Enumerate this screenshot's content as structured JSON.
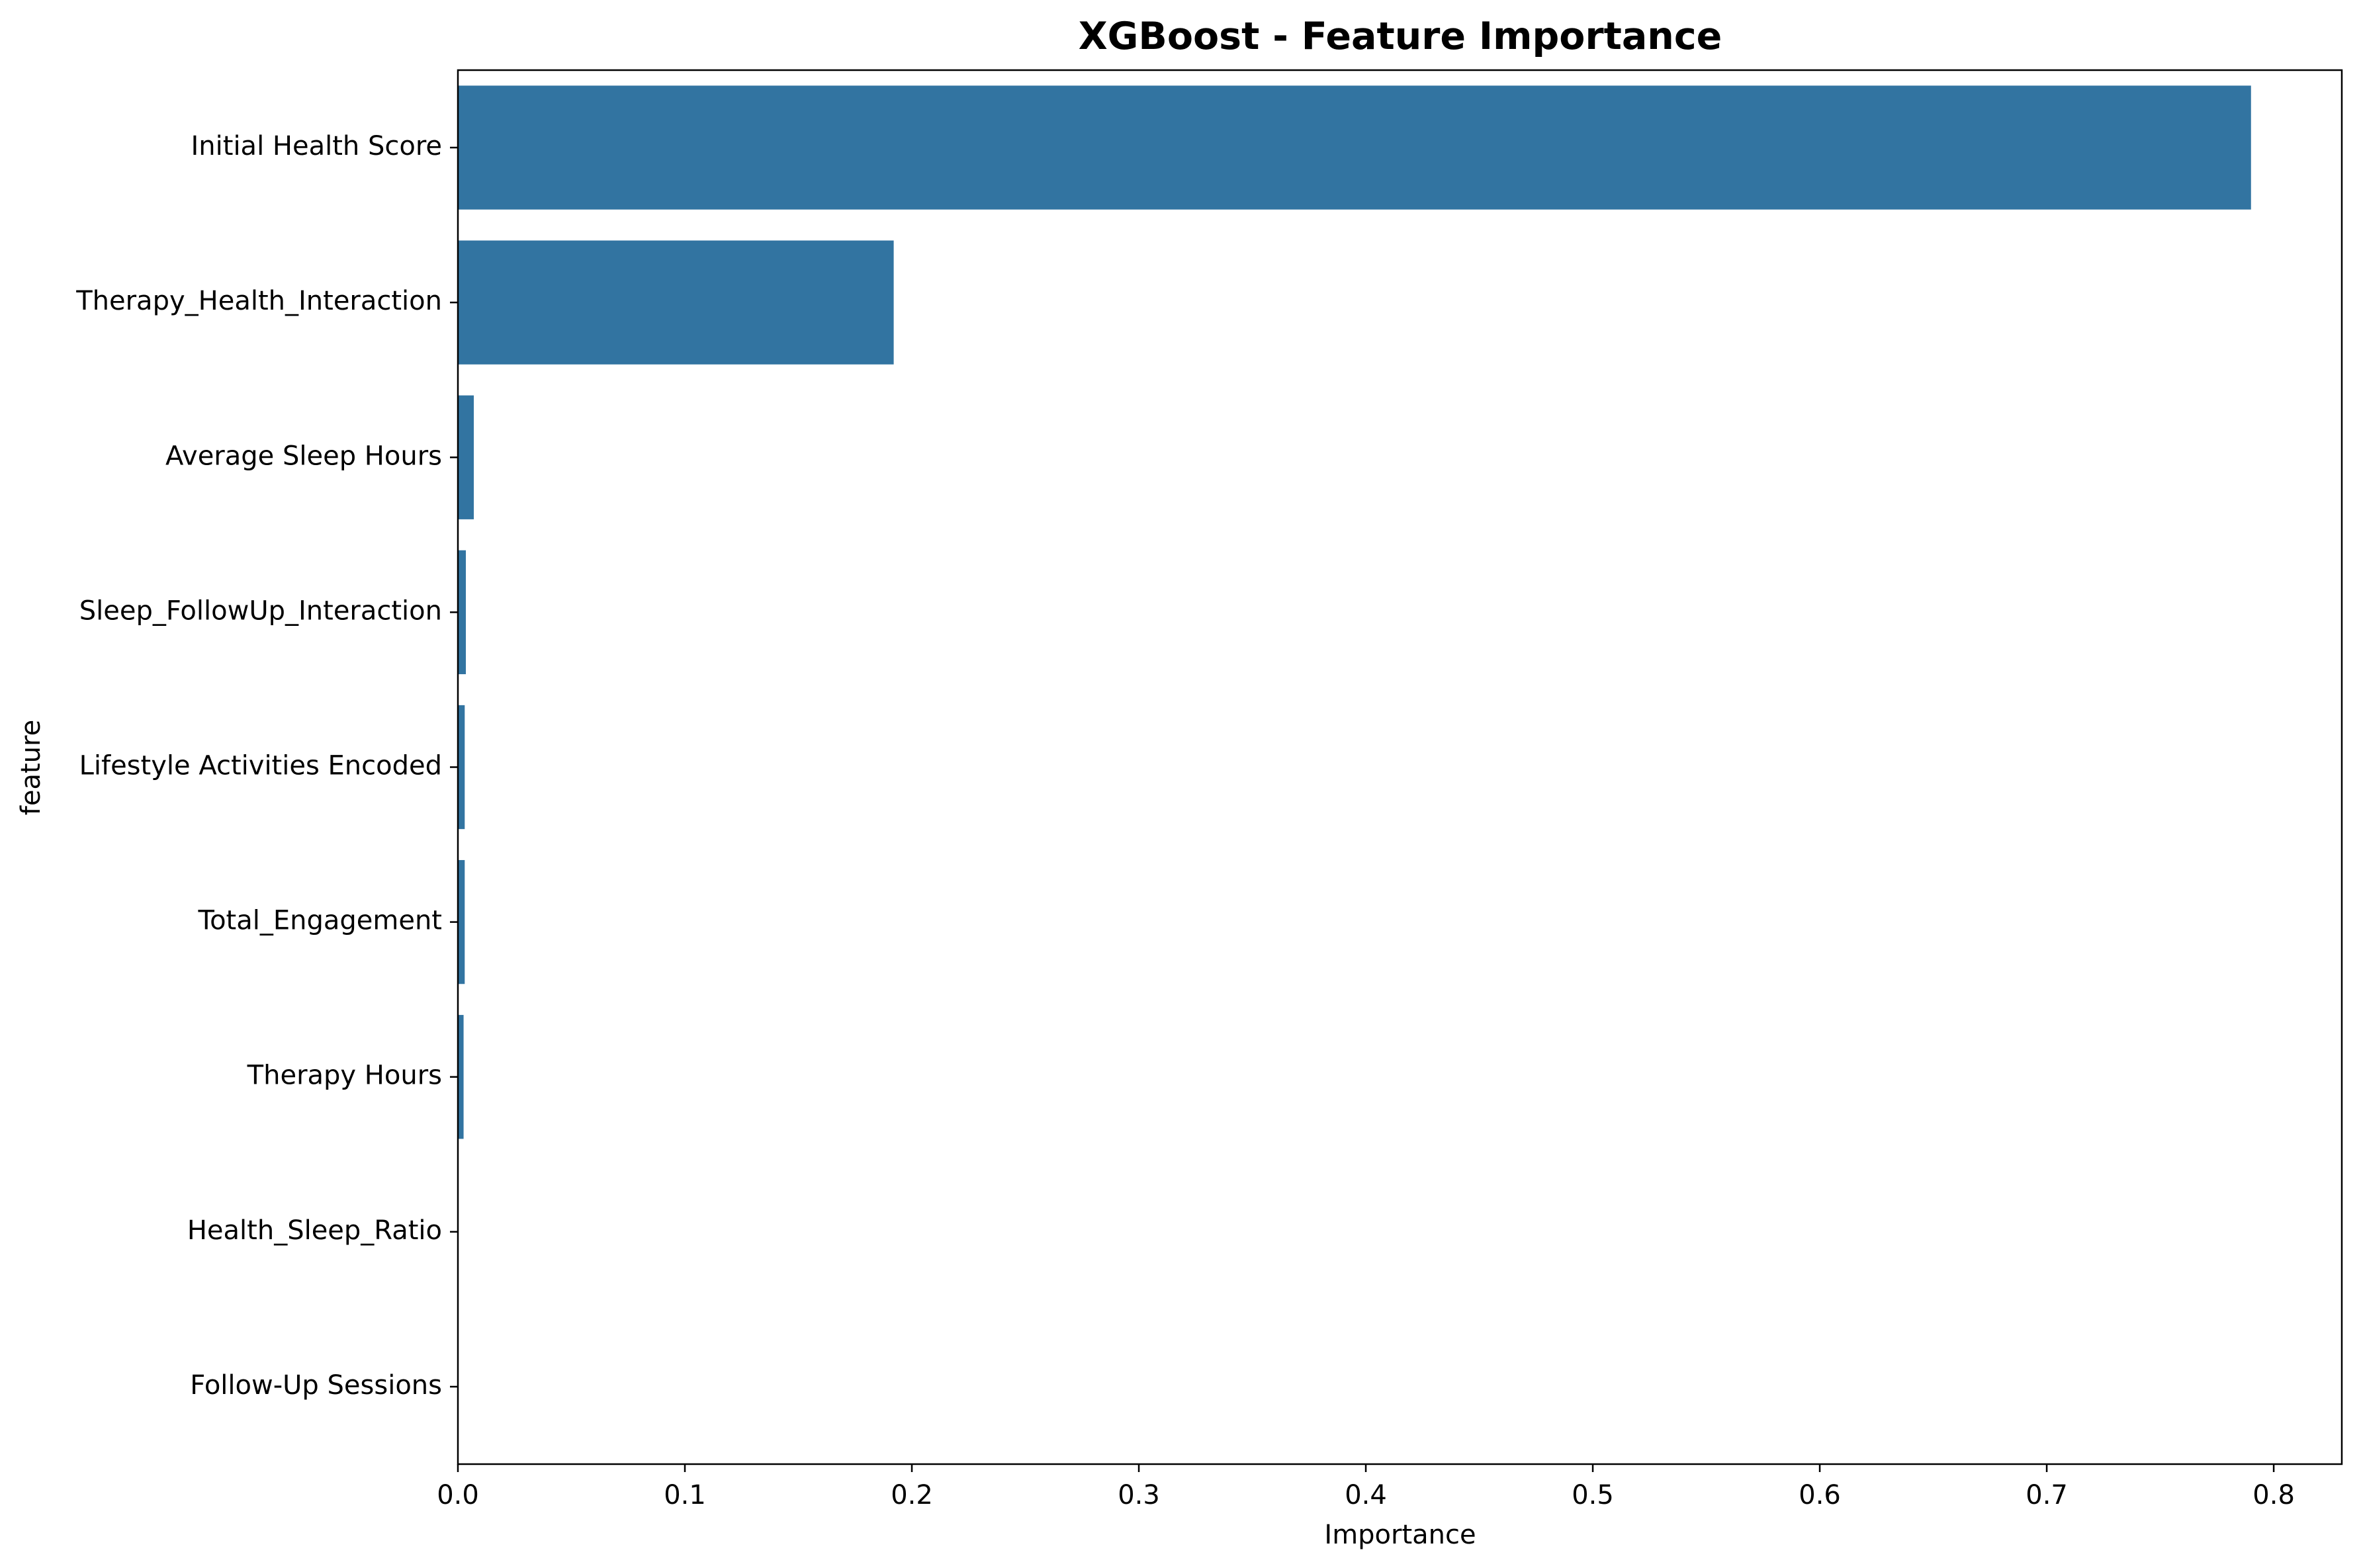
{
  "chart_data": {
    "type": "bar",
    "orientation": "horizontal",
    "title": "XGBoost - Feature Importance",
    "xlabel": "Importance",
    "ylabel": "feature",
    "categories": [
      "Initial Health Score",
      "Therapy_Health_Interaction",
      "Average Sleep Hours",
      "Sleep_FollowUp_Interaction",
      "Lifestyle Activities Encoded",
      "Total_Engagement",
      "Therapy Hours",
      "Health_Sleep_Ratio",
      "Follow-Up Sessions"
    ],
    "values": [
      0.79,
      0.192,
      0.007,
      0.0035,
      0.003,
      0.003,
      0.0025,
      0.0,
      0.0
    ],
    "xlim": [
      0.0,
      0.83
    ],
    "xticks": [
      0.0,
      0.1,
      0.2,
      0.3,
      0.4,
      0.5,
      0.6,
      0.7,
      0.8
    ],
    "xtick_labels": [
      "0.0",
      "0.1",
      "0.2",
      "0.3",
      "0.4",
      "0.5",
      "0.6",
      "0.7",
      "0.8"
    ],
    "bar_color": "#3274a1",
    "grid": false,
    "legend": "none"
  }
}
